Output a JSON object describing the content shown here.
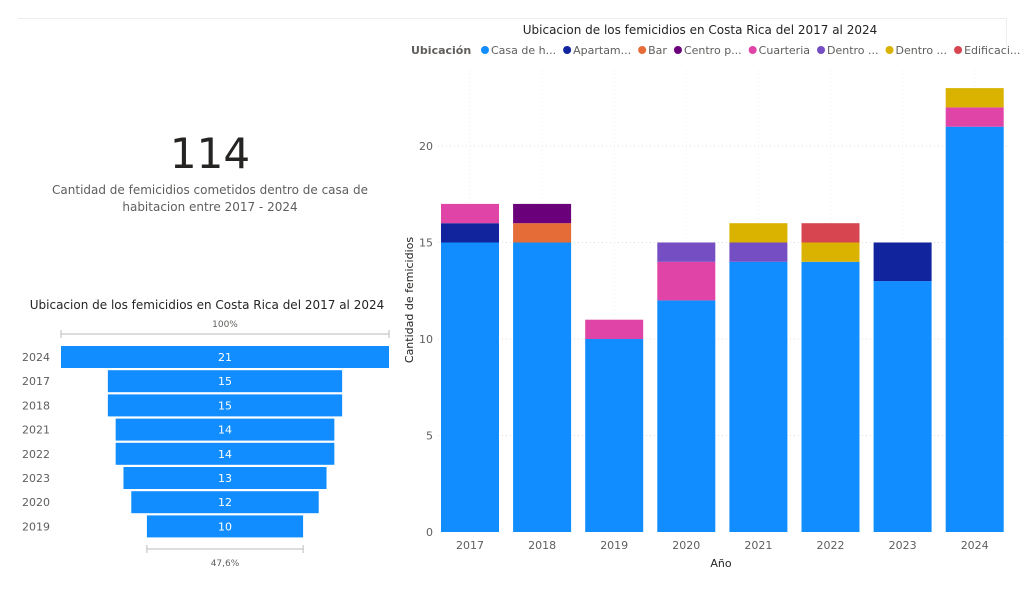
{
  "kpi": {
    "value": "114",
    "label": "Cantidad de femicidios cometidos dentro de casa de habitacion entre 2017 - 2024"
  },
  "chart_data": [
    {
      "type": "funnel",
      "title": "Ubicacion de los femicidios en Costa Rica del 2017 al 2024",
      "categories": [
        "2024",
        "2017",
        "2018",
        "2021",
        "2022",
        "2023",
        "2020",
        "2019"
      ],
      "values": [
        21,
        15,
        15,
        14,
        14,
        13,
        12,
        10
      ],
      "top_label": "100%",
      "bottom_label": "47,6%",
      "color": "#118DFF"
    },
    {
      "type": "bar",
      "stacked": true,
      "title": "Ubicacion de los femicidios en Costa Rica del 2017 al 2024",
      "xlabel": "Año",
      "ylabel": "Cantidad de femicidios",
      "legend_title": "Ubicación",
      "legend_position": "top",
      "ylim": [
        0,
        23
      ],
      "yticks": [
        "0",
        "5",
        "10",
        "15",
        "20"
      ],
      "grid": true,
      "categories": [
        "2017",
        "2018",
        "2019",
        "2020",
        "2021",
        "2022",
        "2023",
        "2024"
      ],
      "series": [
        {
          "name": "Casa de h...",
          "color": "#118DFF",
          "values": [
            15,
            15,
            10,
            12,
            14,
            14,
            13,
            21
          ]
        },
        {
          "name": "Apartam...",
          "color": "#12239E",
          "values": [
            1,
            0,
            0,
            0,
            0,
            0,
            2,
            0
          ]
        },
        {
          "name": "Bar",
          "color": "#E66C37",
          "values": [
            0,
            1,
            0,
            0,
            0,
            0,
            0,
            0
          ]
        },
        {
          "name": "Centro p...",
          "color": "#6B007B",
          "values": [
            0,
            1,
            0,
            0,
            0,
            0,
            0,
            0
          ]
        },
        {
          "name": "Cuarteria",
          "color": "#E044A7",
          "values": [
            1,
            0,
            1,
            2,
            0,
            0,
            0,
            1
          ]
        },
        {
          "name": "Dentro ...",
          "color": "#744EC2",
          "values": [
            0,
            0,
            0,
            1,
            1,
            0,
            0,
            0
          ]
        },
        {
          "name": "Dentro ...",
          "color": "#D9B300",
          "values": [
            0,
            0,
            0,
            0,
            1,
            1,
            0,
            1
          ]
        },
        {
          "name": "Edificaci...",
          "color": "#D64550",
          "values": [
            0,
            0,
            0,
            0,
            0,
            1,
            0,
            0
          ]
        }
      ]
    }
  ]
}
